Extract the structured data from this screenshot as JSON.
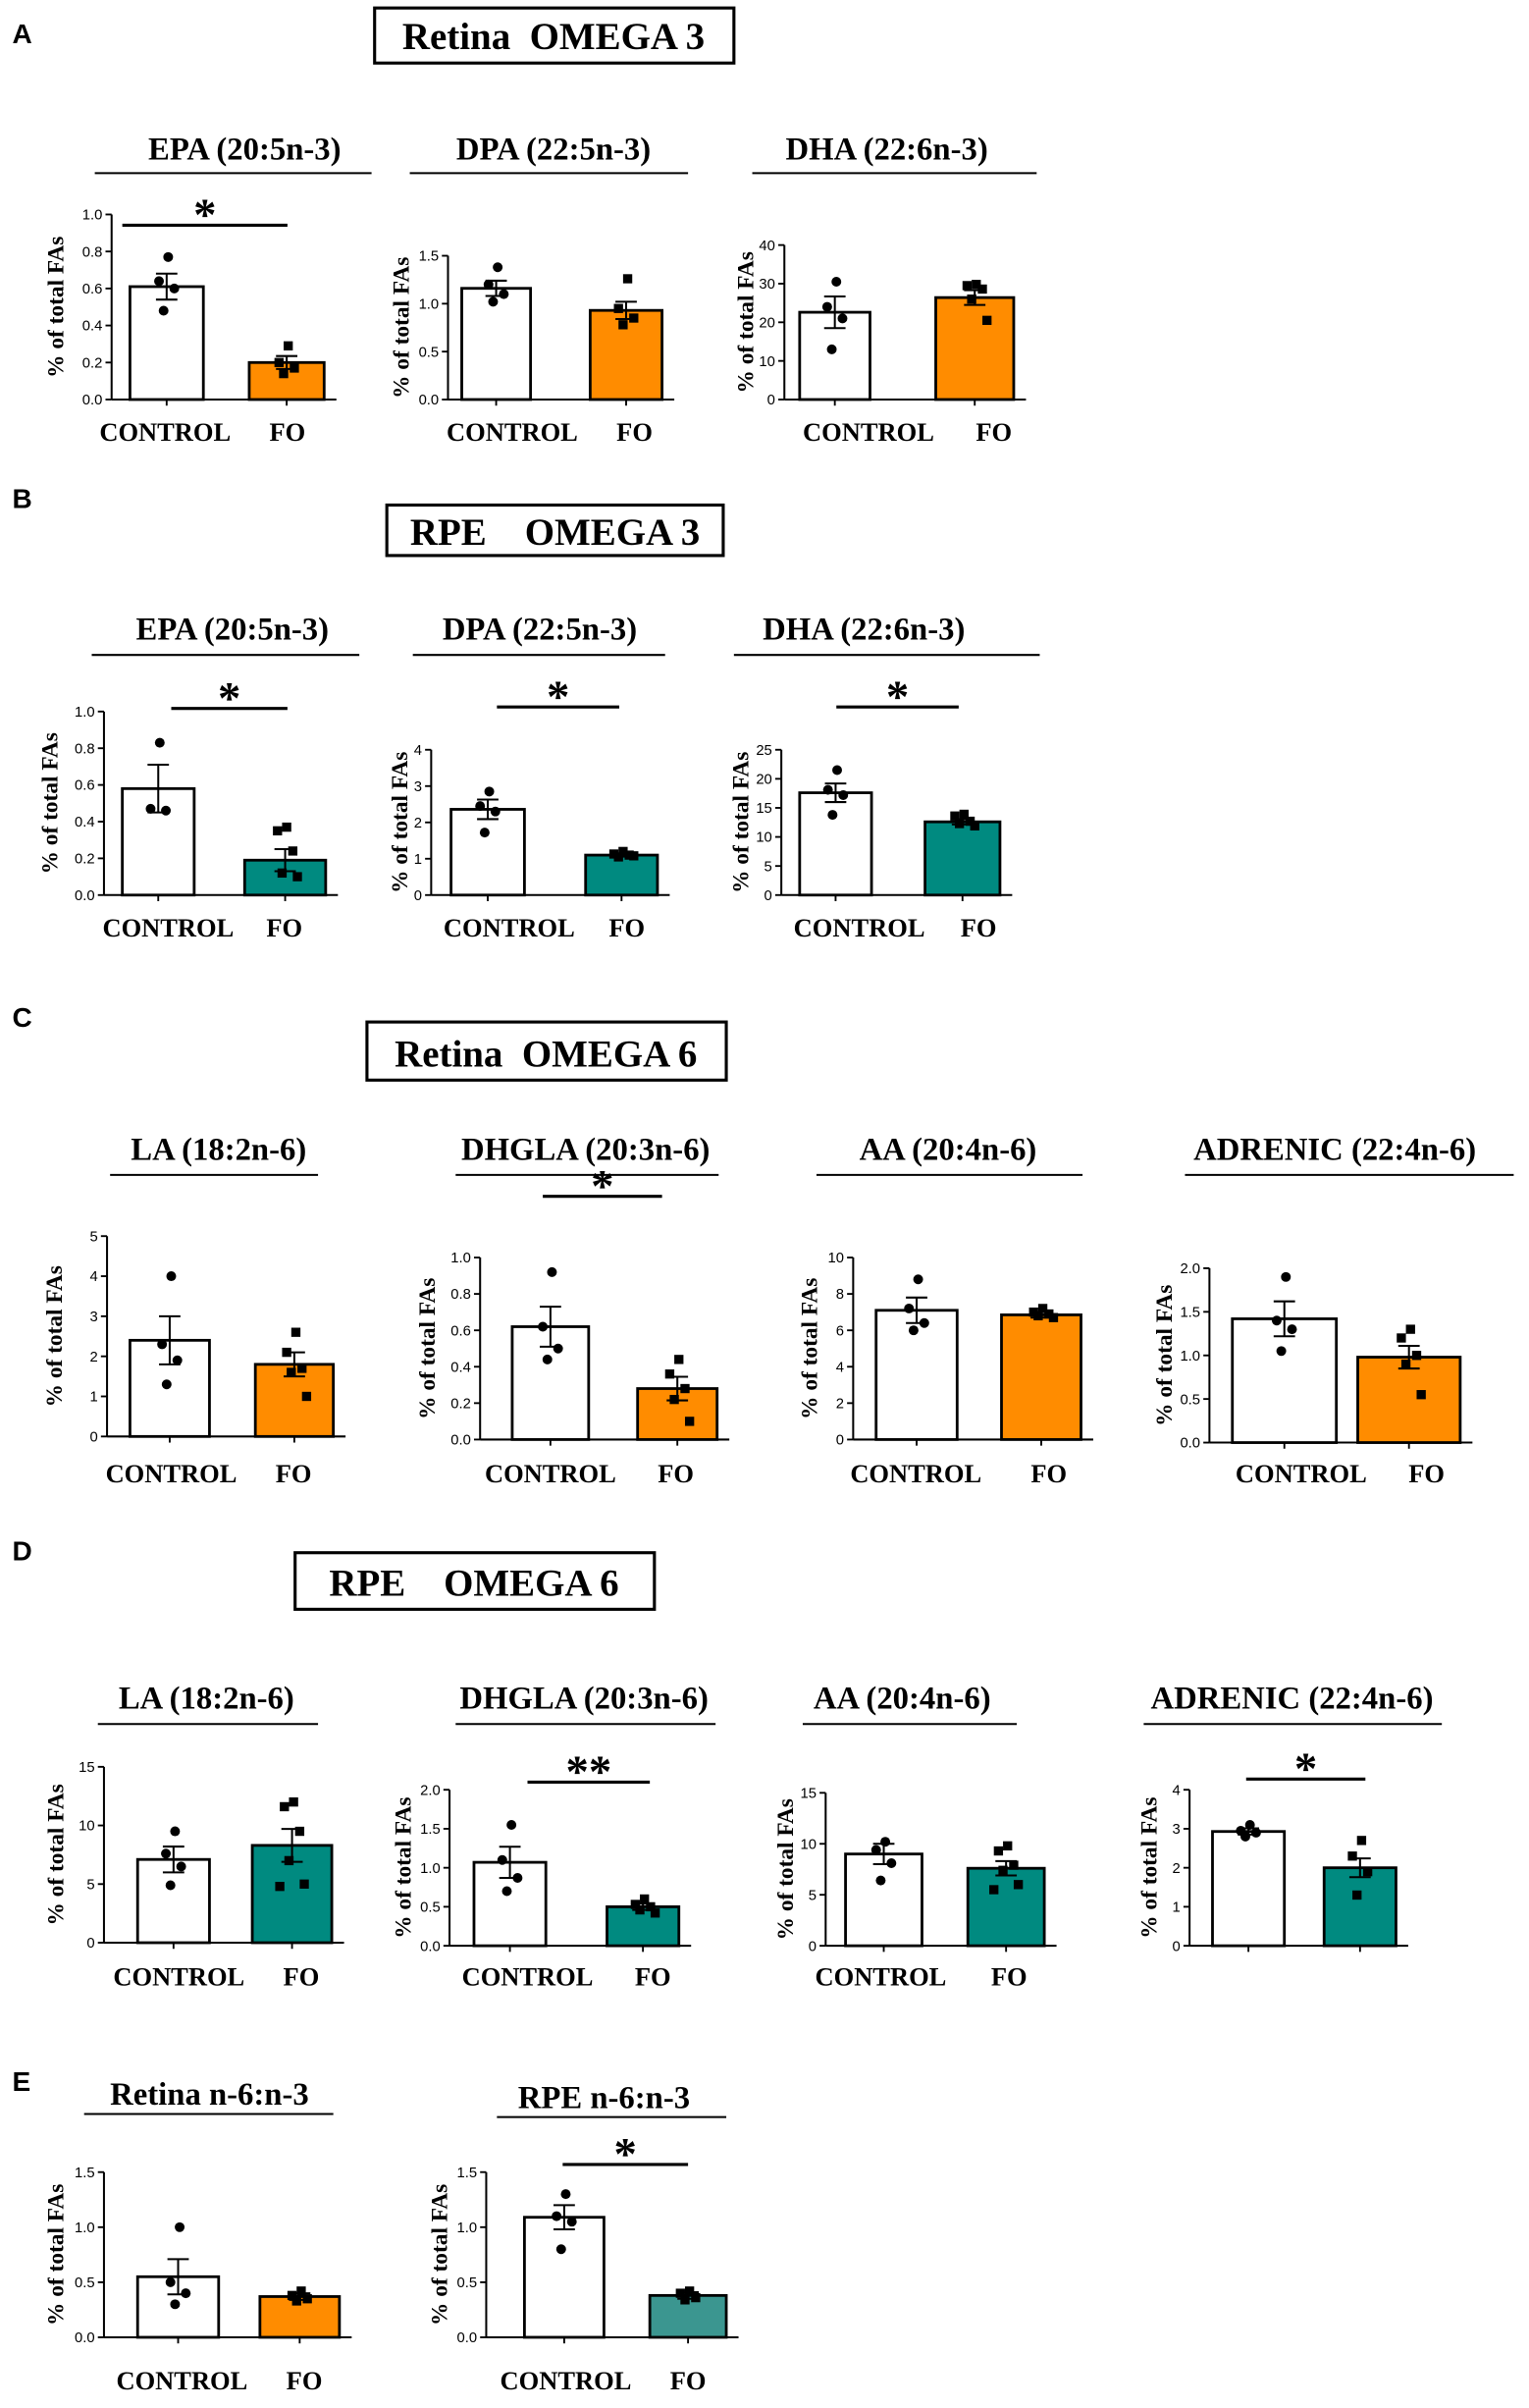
{
  "panels": [
    {
      "label": "A",
      "heading": "Retina  OMEGA 3"
    },
    {
      "label": "B",
      "heading": "RPE    OMEGA 3"
    },
    {
      "label": "C",
      "heading": "Retina  OMEGA 6"
    },
    {
      "label": "D",
      "heading": "RPE    OMEGA 6"
    },
    {
      "label": "E"
    }
  ],
  "colors": {
    "control": "#ffffff",
    "fo_retina": "#ff8c00",
    "fo_rpe": "#008a80",
    "fo_rpe_ratio": "#3b9690"
  },
  "chart_data": [
    {
      "panel": "A",
      "type": "bar",
      "title": "EPA (20:5n-3)",
      "ylabel": "% of total FAs",
      "categories": [
        "CONTROL",
        "FO"
      ],
      "ytick_labels": [
        "0.0",
        "0.2",
        "0.4",
        "0.6",
        "0.8",
        "1.0"
      ],
      "ylim": [
        0,
        1.0
      ],
      "values": [
        0.61,
        0.2
      ],
      "sem": [
        0.07,
        0.035
      ],
      "points": [
        [
          0.77,
          0.64,
          0.6,
          0.48
        ],
        [
          0.29,
          0.2,
          0.17,
          0.14
        ]
      ],
      "bar_colors": [
        "#ffffff",
        "#ff8c00"
      ],
      "significance": "*"
    },
    {
      "panel": "A",
      "type": "bar",
      "title": "DPA (22:5n-3)",
      "ylabel": "% of total FAs",
      "categories": [
        "CONTROL",
        "FO"
      ],
      "ytick_labels": [
        "0.0",
        "0.5",
        "1.0",
        "1.5"
      ],
      "ylim": [
        0,
        1.5
      ],
      "values": [
        1.16,
        0.93
      ],
      "sem": [
        0.08,
        0.09
      ],
      "points": [
        [
          1.38,
          1.2,
          1.1,
          1.02
        ],
        [
          1.26,
          0.95,
          0.85,
          0.78
        ]
      ],
      "bar_colors": [
        "#ffffff",
        "#ff8c00"
      ]
    },
    {
      "panel": "A",
      "type": "bar",
      "title": "DHA (22:6n-3)",
      "ylabel": "% of total FAs",
      "categories": [
        "CONTROL",
        "FO"
      ],
      "ytick_labels": [
        "0",
        "10",
        "20",
        "30",
        "40"
      ],
      "ylim": [
        0,
        40
      ],
      "values": [
        22.6,
        26.4
      ],
      "sem": [
        4.1,
        1.9
      ],
      "points": [
        [
          30.5,
          24.0,
          21.0,
          13.0
        ],
        [
          29.8,
          29.5,
          28.6,
          26.0,
          20.5
        ]
      ],
      "bar_colors": [
        "#ffffff",
        "#ff8c00"
      ]
    },
    {
      "panel": "B",
      "type": "bar",
      "title": "EPA (20:5n-3)",
      "ylabel": "% of total FAs",
      "categories": [
        "CONTROL",
        "FO"
      ],
      "ytick_labels": [
        "0.0",
        "0.2",
        "0.4",
        "0.6",
        "0.8",
        "1.0"
      ],
      "ylim": [
        0,
        1.0
      ],
      "values": [
        0.58,
        0.19
      ],
      "sem": [
        0.13,
        0.06
      ],
      "points": [
        [
          0.83,
          0.47,
          0.46
        ],
        [
          0.37,
          0.35,
          0.24,
          0.12,
          0.1
        ]
      ],
      "bar_colors": [
        "#ffffff",
        "#008a80"
      ],
      "significance": "*"
    },
    {
      "panel": "B",
      "type": "bar",
      "title": "DPA (22:5n-3)",
      "ylabel": "% of total FAs",
      "categories": [
        "CONTROL",
        "FO"
      ],
      "ytick_labels": [
        "0",
        "1",
        "2",
        "3",
        "4"
      ],
      "ylim": [
        0,
        4
      ],
      "values": [
        2.36,
        1.1
      ],
      "sem": [
        0.27,
        0.04
      ],
      "points": [
        [
          2.85,
          2.45,
          2.3,
          1.72
        ],
        [
          1.2,
          1.13,
          1.1,
          1.05,
          1.08
        ]
      ],
      "bar_colors": [
        "#ffffff",
        "#008a80"
      ],
      "significance": "*"
    },
    {
      "panel": "B",
      "type": "bar",
      "title": "DHA (22:6n-3)",
      "ylabel": "% of total FAs",
      "categories": [
        "CONTROL",
        "FO"
      ],
      "ytick_labels": [
        "0",
        "5",
        "10",
        "15",
        "20",
        "25"
      ],
      "ylim": [
        0,
        25
      ],
      "values": [
        17.6,
        12.6
      ],
      "sem": [
        1.6,
        0.45
      ],
      "points": [
        [
          21.5,
          18.1,
          17.2,
          13.8
        ],
        [
          13.9,
          13.6,
          12.7,
          12.3,
          11.9
        ]
      ],
      "bar_colors": [
        "#ffffff",
        "#008a80"
      ],
      "significance": "*"
    },
    {
      "panel": "C",
      "type": "bar",
      "title": "LA (18:2n-6)",
      "ylabel": "% of total FAs",
      "categories": [
        "CONTROL",
        "FO"
      ],
      "ytick_labels": [
        "0",
        "1",
        "2",
        "3",
        "4",
        "5"
      ],
      "ylim": [
        0,
        5
      ],
      "values": [
        2.4,
        1.8
      ],
      "sem": [
        0.6,
        0.3
      ],
      "points": [
        [
          4.0,
          2.3,
          1.9,
          1.3
        ],
        [
          2.6,
          2.1,
          1.7,
          1.6,
          1.0
        ]
      ],
      "bar_colors": [
        "#ffffff",
        "#ff8c00"
      ]
    },
    {
      "panel": "C",
      "type": "bar",
      "title": "DHGLA (20:3n-6)",
      "ylabel": "% of total FAs",
      "categories": [
        "CONTROL",
        "FO"
      ],
      "ytick_labels": [
        "0.0",
        "0.2",
        "0.4",
        "0.6",
        "0.8",
        "1.0"
      ],
      "ylim": [
        0,
        1.0
      ],
      "values": [
        0.62,
        0.28
      ],
      "sem": [
        0.11,
        0.065
      ],
      "points": [
        [
          0.92,
          0.62,
          0.5,
          0.44
        ],
        [
          0.44,
          0.36,
          0.28,
          0.22,
          0.1
        ]
      ],
      "bar_colors": [
        "#ffffff",
        "#ff8c00"
      ],
      "significance": "*"
    },
    {
      "panel": "C",
      "type": "bar",
      "title": "AA (20:4n-6)",
      "ylabel": "% of total FAs",
      "categories": [
        "CONTROL",
        "FO"
      ],
      "ytick_labels": [
        "0",
        "2",
        "4",
        "6",
        "8",
        "10"
      ],
      "ylim": [
        0,
        10
      ],
      "values": [
        7.1,
        6.85
      ],
      "sem": [
        0.7,
        0.15
      ],
      "points": [
        [
          8.8,
          7.2,
          6.4,
          6.0
        ],
        [
          7.2,
          7.0,
          6.9,
          6.8,
          6.7
        ]
      ],
      "bar_colors": [
        "#ffffff",
        "#ff8c00"
      ]
    },
    {
      "panel": "C",
      "type": "bar",
      "title": "ADRENIC (22:4n-6)",
      "ylabel": "% of total FAs",
      "categories": [
        "CONTROL",
        "FO"
      ],
      "ytick_labels": [
        "0.0",
        "0.5",
        "1.0",
        "1.5",
        "2.0"
      ],
      "ylim": [
        0,
        2.0
      ],
      "values": [
        1.42,
        0.98
      ],
      "sem": [
        0.2,
        0.13
      ],
      "points": [
        [
          1.9,
          1.4,
          1.3,
          1.05
        ],
        [
          1.3,
          1.2,
          1.0,
          0.9,
          0.55
        ]
      ],
      "bar_colors": [
        "#ffffff",
        "#ff8c00"
      ]
    },
    {
      "panel": "D",
      "type": "bar",
      "title": "LA (18:2n-6)",
      "ylabel": "% of total FAs",
      "categories": [
        "CONTROL",
        "FO"
      ],
      "ytick_labels": [
        "0",
        "5",
        "10",
        "15"
      ],
      "ylim": [
        0,
        15
      ],
      "values": [
        7.1,
        8.3
      ],
      "sem": [
        1.1,
        1.4
      ],
      "points": [
        [
          9.5,
          7.6,
          6.5,
          4.9
        ],
        [
          12.0,
          11.6,
          9.5,
          7.0,
          5.0,
          4.8
        ]
      ],
      "bar_colors": [
        "#ffffff",
        "#008a80"
      ]
    },
    {
      "panel": "D",
      "type": "bar",
      "title": "DHGLA (20:3n-6)",
      "ylabel": "% of total FAs",
      "categories": [
        "CONTROL",
        "FO"
      ],
      "ytick_labels": [
        "0.0",
        "0.5",
        "1.0",
        "1.5",
        "2.0"
      ],
      "ylim": [
        0,
        2.0
      ],
      "values": [
        1.07,
        0.5
      ],
      "sem": [
        0.2,
        0.04
      ],
      "points": [
        [
          1.55,
          1.1,
          0.87,
          0.7
        ],
        [
          0.6,
          0.53,
          0.5,
          0.46,
          0.42
        ]
      ],
      "bar_colors": [
        "#ffffff",
        "#008a80"
      ],
      "significance": "**"
    },
    {
      "panel": "D",
      "type": "bar",
      "title": "AA (20:4n-6)",
      "ylabel": "% of total FAs",
      "categories": [
        "CONTROL",
        "FO"
      ],
      "ytick_labels": [
        "0",
        "5",
        "10",
        "15"
      ],
      "ylim": [
        0,
        15
      ],
      "values": [
        9.0,
        7.6
      ],
      "sem": [
        1.0,
        0.7
      ],
      "points": [
        [
          10.2,
          9.4,
          8.1,
          6.4
        ],
        [
          9.8,
          9.3,
          7.9,
          7.4,
          6.0,
          5.5
        ]
      ],
      "bar_colors": [
        "#ffffff",
        "#008a80"
      ]
    },
    {
      "panel": "D",
      "type": "bar",
      "title": "ADRENIC (22:4n-6)",
      "ylabel": "% of total FAs",
      "ytick_labels": [
        "0",
        "1",
        "2",
        "3",
        "4"
      ],
      "ylim": [
        0,
        4
      ],
      "values": [
        2.93,
        2.0
      ],
      "sem": [
        0.08,
        0.24
      ],
      "points": [
        [
          3.1,
          2.95,
          2.9,
          2.8
        ],
        [
          2.7,
          2.3,
          1.9,
          1.3
        ]
      ],
      "bar_colors": [
        "#ffffff",
        "#008a80"
      ],
      "significance": "*"
    },
    {
      "panel": "E",
      "type": "bar",
      "title": "Retina n-6:n-3",
      "ylabel": "% of total FAs",
      "categories": [
        "CONTROL",
        "FO"
      ],
      "ytick_labels": [
        "0.0",
        "0.5",
        "1.0",
        "1.5"
      ],
      "ylim": [
        0,
        1.5
      ],
      "values": [
        0.55,
        0.37
      ],
      "sem": [
        0.16,
        0.03
      ],
      "points": [
        [
          1.0,
          0.5,
          0.4,
          0.3
        ],
        [
          0.42,
          0.38,
          0.35,
          0.33
        ]
      ],
      "bar_colors": [
        "#ffffff",
        "#ff8c00"
      ]
    },
    {
      "panel": "E",
      "type": "bar",
      "title": "RPE n-6:n-3",
      "ylabel": "% of total FAs",
      "categories": [
        "CONTROL",
        "FO"
      ],
      "ytick_labels": [
        "0.0",
        "0.5",
        "1.0",
        "1.5"
      ],
      "ylim": [
        0,
        1.5
      ],
      "values": [
        1.09,
        0.38
      ],
      "sem": [
        0.11,
        0.03
      ],
      "points": [
        [
          1.3,
          1.1,
          1.05,
          0.8
        ],
        [
          0.42,
          0.4,
          0.36,
          0.34
        ]
      ],
      "bar_colors": [
        "#ffffff",
        "#3b9690"
      ],
      "significance": "*"
    }
  ]
}
